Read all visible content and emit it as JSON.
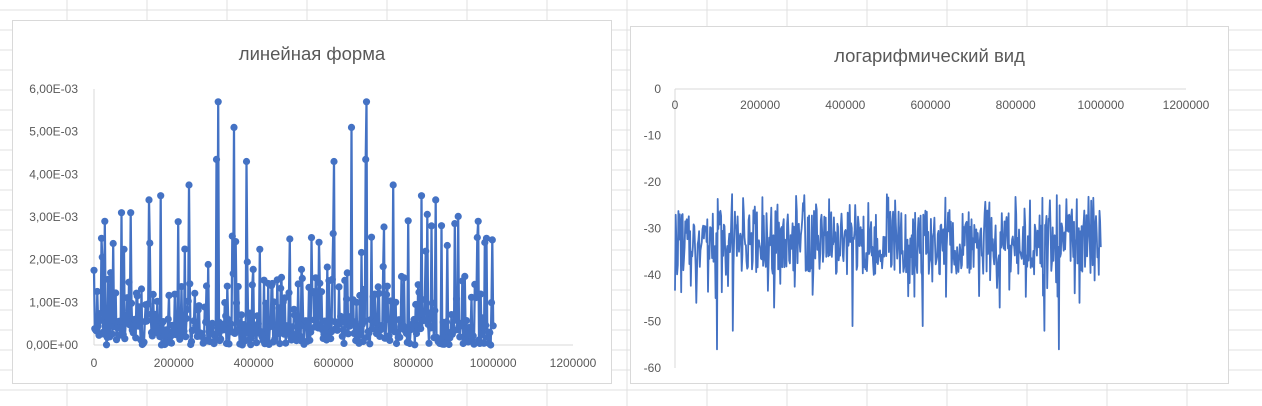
{
  "colors": {
    "series": "#4472c4",
    "axis": "#d9d9d9",
    "text": "#595959",
    "cell_grid": "#e1e1e1"
  },
  "chart_data": [
    {
      "type": "line",
      "markers": true,
      "title": "линейная форма",
      "xlabel": "",
      "ylabel": "",
      "xlim": [
        0,
        1200000
      ],
      "ylim": [
        0,
        0.006
      ],
      "x_ticks": [
        "0",
        "200000",
        "400000",
        "600000",
        "800000",
        "1000000",
        "1200000"
      ],
      "y_ticks": [
        "0,00E+00",
        "1,00E-03",
        "2,00E-03",
        "3,00E-03",
        "4,00E-03",
        "5,00E-03",
        "6,00E-03"
      ],
      "grid": false,
      "legend": "none",
      "series": [
        {
          "x_start": 0,
          "x_end": 1000000,
          "n_points": 480,
          "peaks": [
            {
              "x": 312000,
              "y": 0.0057
            },
            {
              "x": 682000,
              "y": 0.0057
            },
            {
              "x": 350000,
              "y": 0.0051
            },
            {
              "x": 646000,
              "y": 0.0051
            },
            {
              "x": 306000,
              "y": 0.00435
            },
            {
              "x": 680000,
              "y": 0.00435
            },
            {
              "x": 382000,
              "y": 0.0043
            },
            {
              "x": 602000,
              "y": 0.0043
            },
            {
              "x": 238000,
              "y": 0.00375
            },
            {
              "x": 750000,
              "y": 0.00375
            },
            {
              "x": 168000,
              "y": 0.0035
            },
            {
              "x": 820000,
              "y": 0.0035
            },
            {
              "x": 138000,
              "y": 0.0034
            },
            {
              "x": 856000,
              "y": 0.0034
            },
            {
              "x": 68000,
              "y": 0.0031
            },
            {
              "x": 92000,
              "y": 0.0031
            },
            {
              "x": 28000,
              "y": 0.0029
            },
            {
              "x": 962000,
              "y": 0.0029
            },
            {
              "x": 18000,
              "y": 0.0025
            },
            {
              "x": 984000,
              "y": 0.0025
            }
          ],
          "base_max": 0.0031,
          "end_values": [
            0.00175,
            0.00045
          ]
        }
      ]
    },
    {
      "type": "line",
      "markers": false,
      "title": "логарифмический вид",
      "xlabel": "",
      "ylabel": "",
      "xlim": [
        0,
        1200000
      ],
      "ylim": [
        -60,
        0
      ],
      "x_ticks": [
        "0",
        "200000",
        "400000",
        "600000",
        "800000",
        "1000000",
        "1200000"
      ],
      "y_ticks": [
        "0",
        "-10",
        "-20",
        "-30",
        "-40",
        "-50",
        "-60"
      ],
      "x_axis_at": "top",
      "grid": false,
      "legend": "none",
      "series": [
        {
          "x_start": 0,
          "x_end": 1000000,
          "n_points": 620,
          "typical_range": [
            -40,
            -26
          ],
          "max": -22.5,
          "dips": [
            {
              "x": 98000,
              "y": -56
            },
            {
              "x": 902000,
              "y": -56
            },
            {
              "x": 135000,
              "y": -52
            },
            {
              "x": 868000,
              "y": -52
            },
            {
              "x": 416000,
              "y": -51
            },
            {
              "x": 582000,
              "y": -51
            },
            {
              "x": 50000,
              "y": -46
            },
            {
              "x": 950000,
              "y": -46
            },
            {
              "x": 232000,
              "y": -47
            },
            {
              "x": 762000,
              "y": -47
            }
          ]
        }
      ]
    }
  ]
}
